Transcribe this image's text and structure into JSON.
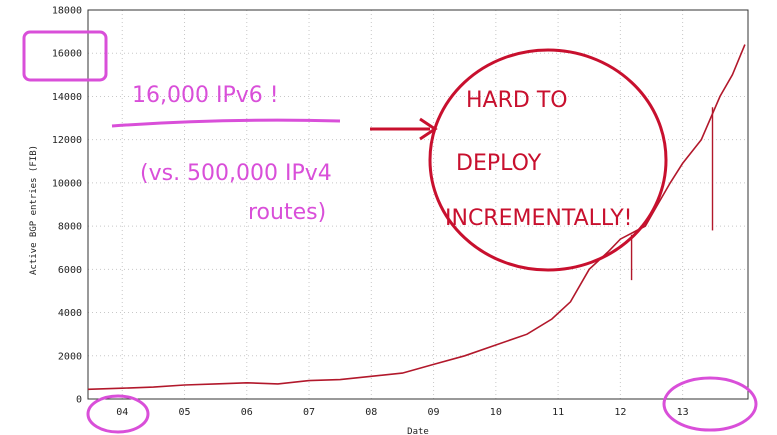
{
  "chart_data": {
    "type": "line",
    "xlabel": "Date",
    "ylabel": "Active BGP entries (FIB)",
    "ylim": [
      0,
      18000
    ],
    "y_ticks": [
      0,
      2000,
      4000,
      6000,
      8000,
      10000,
      12000,
      14000,
      16000,
      18000
    ],
    "x_ticks": [
      {
        "label": "04",
        "x": 2004
      },
      {
        "label": "05",
        "x": 2005
      },
      {
        "label": "06",
        "x": 2006
      },
      {
        "label": "07",
        "x": 2007
      },
      {
        "label": "08",
        "x": 2008
      },
      {
        "label": "09",
        "x": 2009
      },
      {
        "label": "10",
        "x": 2010
      },
      {
        "label": "11",
        "x": 2011
      },
      {
        "label": "12",
        "x": 2012
      },
      {
        "label": "13",
        "x": 2013
      }
    ],
    "xlim": [
      2003.45,
      2014.05
    ],
    "grid": true,
    "series": [
      {
        "color": "#b2182b",
        "x": [
          2003.45,
          2004.0,
          2004.5,
          2005.0,
          2005.5,
          2006.0,
          2006.5,
          2007.0,
          2007.5,
          2008.0,
          2008.5,
          2009.0,
          2009.5,
          2010.0,
          2010.5,
          2010.9,
          2011.2,
          2011.5,
          2011.8,
          2012.0,
          2012.2,
          2012.4,
          2012.6,
          2012.8,
          2013.0,
          2013.3,
          2013.6,
          2013.8,
          2014.0
        ],
        "y": [
          450,
          500,
          550,
          650,
          700,
          750,
          700,
          850,
          900,
          1050,
          1200,
          1600,
          2000,
          2500,
          3000,
          3700,
          4500,
          6000,
          6800,
          7400,
          7700,
          8000,
          9000,
          10000,
          10900,
          12000,
          14000,
          15000,
          16400
        ]
      }
    ],
    "spikes": [
      {
        "x": 2012.18,
        "y_top": 7600,
        "y_bottom": 5500
      },
      {
        "x": 2013.48,
        "y_top": 13500,
        "y_bottom": 7800
      }
    ]
  },
  "annotations": {
    "pink_line1": "16,000 IPv6 !",
    "pink_line2": "(vs. 500,000 IPv4",
    "pink_line3": "routes)",
    "red_line1": "HARD TO",
    "red_line2": "DEPLOY",
    "red_line3": "INCREMENTALLY!"
  },
  "colors": {
    "series": "#b2182b",
    "pink_ink": "#d94fd9",
    "red_ink": "#c8102e",
    "grid": "#c8c8c8"
  }
}
